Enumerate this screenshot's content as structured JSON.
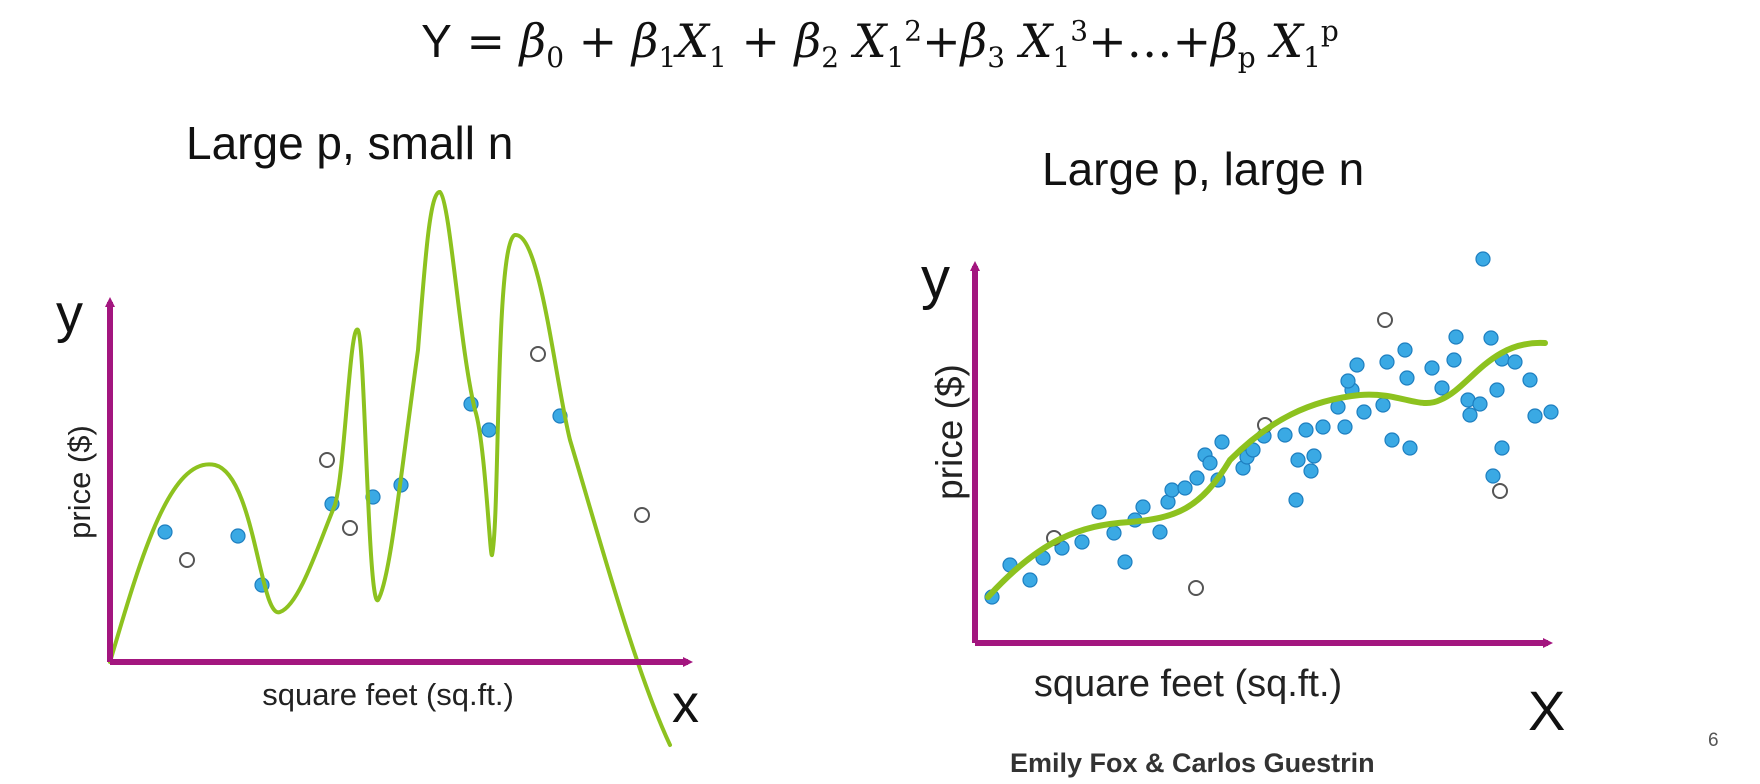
{
  "formula": {
    "y": "Y",
    "eq": " = ",
    "beta": "β",
    "x": "X",
    "plus": " + ",
    "plus_tight": "+",
    "ellipsis": "…",
    "sub0": "0",
    "sub1": "1",
    "sub2": "2",
    "sub3": "3",
    "subp": "p",
    "sup2": "2",
    "sup3": "3",
    "supp": "p"
  },
  "panels": {
    "left": {
      "title": "Large p, small n",
      "y_axis_letter": "y",
      "x_axis_letter": "x",
      "y_label": "price ($)",
      "x_label": "square feet (sq.ft.)"
    },
    "right": {
      "title": "Large p, large n",
      "y_axis_letter": "y",
      "x_axis_letter": "X",
      "y_label": "price ($)",
      "x_label": "square feet (sq.ft.)"
    }
  },
  "colors": {
    "axis": "#a3167f",
    "curve": "#8dc21f",
    "point_fill": "#3aa9e4",
    "point_stroke": "#1e7fc0",
    "holdout_fill": "#ffffff",
    "holdout_stroke": "#555555"
  },
  "footer": "Emily Fox & Carlos Guestrin",
  "page_number": "6"
}
